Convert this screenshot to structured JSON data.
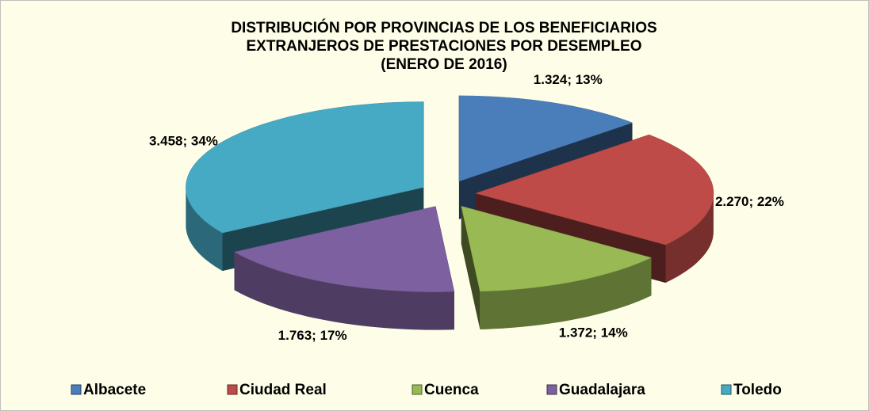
{
  "chart_data": {
    "type": "pie3d",
    "title": [
      "DISTRIBUCIÓN POR PROVINCIAS DE LOS BENEFICIARIOS",
      "EXTRANJEROS DE PRESTACIONES POR DESEMPLEO",
      "(ENERO DE 2016)"
    ],
    "categories": [
      "Albacete",
      "Ciudad Real",
      "Cuenca",
      "Guadalajara",
      "Toledo"
    ],
    "values": [
      1324,
      2270,
      1372,
      1763,
      3458
    ],
    "value_labels": [
      "1.324; 13%",
      "2.270; 22%",
      "1.372; 14%",
      "1.763; 17%",
      "3.458; 34%"
    ],
    "colors": [
      "#4a7ebb",
      "#be4b48",
      "#98b954",
      "#7d60a0",
      "#46aac5"
    ],
    "legend": "bottom"
  }
}
